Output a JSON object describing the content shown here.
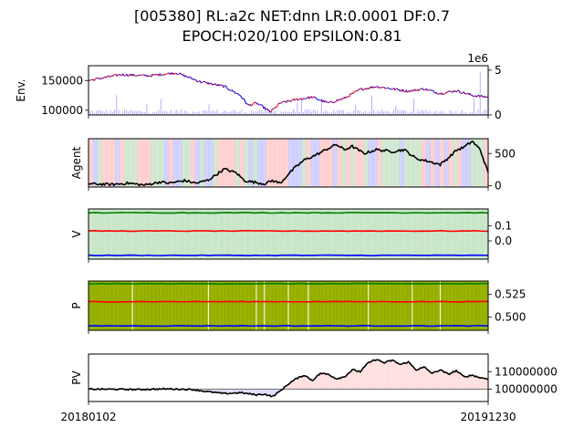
{
  "figure": {
    "title_line1": "[005380] RL:a2c NET:dnn LR:0.0001 DF:0.7",
    "title_line2": "EPOCH:020/100 EPSILON:0.81"
  },
  "chart_data": [
    {
      "type": "line",
      "ylabel": "Env.",
      "ylim": [
        92000,
        175000
      ],
      "yticks": [
        100000,
        150000
      ],
      "ytick_labels": [
        "100000",
        "150000"
      ],
      "secondary_axis": {
        "label_offset": "1e6",
        "ylim": [
          0,
          5.5
        ],
        "yticks": [
          0,
          5
        ],
        "ytick_labels": [
          "0",
          "5"
        ]
      },
      "series": [
        {
          "kind": "price",
          "colors": {
            "up": "#ff0000",
            "down": "#0000ff"
          },
          "anchors": [
            [
              0,
              150000
            ],
            [
              0.08,
              160000
            ],
            [
              0.15,
              158000
            ],
            [
              0.22,
              163000
            ],
            [
              0.28,
              148000
            ],
            [
              0.34,
              140000
            ],
            [
              0.38,
              125000
            ],
            [
              0.4,
              108000
            ],
            [
              0.42,
              112000
            ],
            [
              0.44,
              104000
            ],
            [
              0.455,
              97000
            ],
            [
              0.48,
              112000
            ],
            [
              0.52,
              118000
            ],
            [
              0.56,
              122000
            ],
            [
              0.6,
              112000
            ],
            [
              0.64,
              120000
            ],
            [
              0.68,
              135000
            ],
            [
              0.72,
              140000
            ],
            [
              0.76,
              136000
            ],
            [
              0.8,
              132000
            ],
            [
              0.84,
              136000
            ],
            [
              0.88,
              128000
            ],
            [
              0.92,
              133000
            ],
            [
              0.96,
              125000
            ],
            [
              1,
              122000
            ]
          ]
        },
        {
          "kind": "volume",
          "color": "#8080ff",
          "unit": "1e6"
        }
      ]
    },
    {
      "type": "line",
      "ylabel": "Agent",
      "ylim": [
        -20,
        730
      ],
      "yticks": [
        0,
        500
      ],
      "ytick_labels": [
        "0",
        "500"
      ],
      "action_colors": [
        "#ff8080",
        "#8080ff",
        "#80c080"
      ],
      "series": [
        {
          "kind": "num_stocks",
          "color": "#000000",
          "anchors": [
            [
              0,
              30
            ],
            [
              0.06,
              20
            ],
            [
              0.1,
              40
            ],
            [
              0.14,
              10
            ],
            [
              0.18,
              60
            ],
            [
              0.2,
              40
            ],
            [
              0.24,
              80
            ],
            [
              0.27,
              40
            ],
            [
              0.3,
              90
            ],
            [
              0.34,
              260
            ],
            [
              0.37,
              200
            ],
            [
              0.39,
              80
            ],
            [
              0.41,
              60
            ],
            [
              0.44,
              30
            ],
            [
              0.46,
              80
            ],
            [
              0.48,
              40
            ],
            [
              0.5,
              180
            ],
            [
              0.52,
              300
            ],
            [
              0.54,
              400
            ],
            [
              0.57,
              480
            ],
            [
              0.6,
              580
            ],
            [
              0.62,
              640
            ],
            [
              0.64,
              560
            ],
            [
              0.66,
              610
            ],
            [
              0.69,
              500
            ],
            [
              0.72,
              560
            ],
            [
              0.76,
              530
            ],
            [
              0.79,
              560
            ],
            [
              0.82,
              420
            ],
            [
              0.85,
              380
            ],
            [
              0.88,
              330
            ],
            [
              0.9,
              430
            ],
            [
              0.92,
              550
            ],
            [
              0.94,
              600
            ],
            [
              0.96,
              690
            ],
            [
              0.98,
              560
            ],
            [
              1,
              200
            ]
          ]
        }
      ]
    },
    {
      "type": "line",
      "ylabel": "V",
      "ylim": [
        -0.12,
        0.21
      ],
      "yticks": [
        0.0,
        0.1
      ],
      "ytick_labels": [
        "0.0",
        "0.1"
      ],
      "background_color": "#c8e6c8",
      "series": [
        {
          "kind": "value_buy",
          "color": "#008000",
          "level": 0.185
        },
        {
          "kind": "value_sell",
          "color": "#ff0000",
          "level": 0.065
        },
        {
          "kind": "value_hold",
          "color": "#0000ff",
          "level": -0.095
        }
      ]
    },
    {
      "type": "line",
      "ylabel": "P",
      "ylim": [
        0.485,
        0.54
      ],
      "yticks": [
        0.5,
        0.525
      ],
      "ytick_labels": [
        "0.500",
        "0.525"
      ],
      "background_color": "#99b300",
      "series": [
        {
          "kind": "policy_top",
          "color": "#008000",
          "level": 0.537
        },
        {
          "kind": "policy_buy",
          "color": "#ff0000",
          "level": 0.517
        },
        {
          "kind": "policy_sell",
          "color": "#0000ff",
          "level": 0.49
        }
      ]
    },
    {
      "type": "line",
      "ylabel": "PV",
      "ylim": [
        93000000,
        120000000
      ],
      "yticks": [
        100000000,
        110000000
      ],
      "ytick_labels": [
        "100000000",
        "110000000"
      ],
      "baseline": 100000000,
      "x_start_label": "20180102",
      "x_end_label": "20191230",
      "series": [
        {
          "kind": "portfolio_value",
          "color": "#000000",
          "anchors": [
            [
              0,
              100000000
            ],
            [
              0.06,
              100000000
            ],
            [
              0.12,
              99800000
            ],
            [
              0.2,
              100200000
            ],
            [
              0.26,
              99800000
            ],
            [
              0.3,
              98500000
            ],
            [
              0.34,
              97500000
            ],
            [
              0.38,
              98000000
            ],
            [
              0.42,
              96800000
            ],
            [
              0.44,
              97200000
            ],
            [
              0.46,
              95800000
            ],
            [
              0.48,
              99000000
            ],
            [
              0.5,
              103000000
            ],
            [
              0.52,
              106000000
            ],
            [
              0.54,
              108000000
            ],
            [
              0.56,
              105000000
            ],
            [
              0.58,
              109000000
            ],
            [
              0.6,
              108500000
            ],
            [
              0.62,
              106000000
            ],
            [
              0.64,
              107000000
            ],
            [
              0.66,
              111000000
            ],
            [
              0.68,
              110000000
            ],
            [
              0.7,
              115000000
            ],
            [
              0.72,
              117000000
            ],
            [
              0.74,
              115000000
            ],
            [
              0.76,
              116500000
            ],
            [
              0.78,
              114000000
            ],
            [
              0.8,
              115500000
            ],
            [
              0.82,
              111000000
            ],
            [
              0.84,
              112500000
            ],
            [
              0.86,
              109000000
            ],
            [
              0.88,
              111000000
            ],
            [
              0.9,
              108500000
            ],
            [
              0.92,
              110500000
            ],
            [
              0.94,
              107000000
            ],
            [
              0.96,
              108000000
            ],
            [
              0.98,
              106500000
            ],
            [
              1,
              106000000
            ]
          ]
        }
      ]
    }
  ]
}
